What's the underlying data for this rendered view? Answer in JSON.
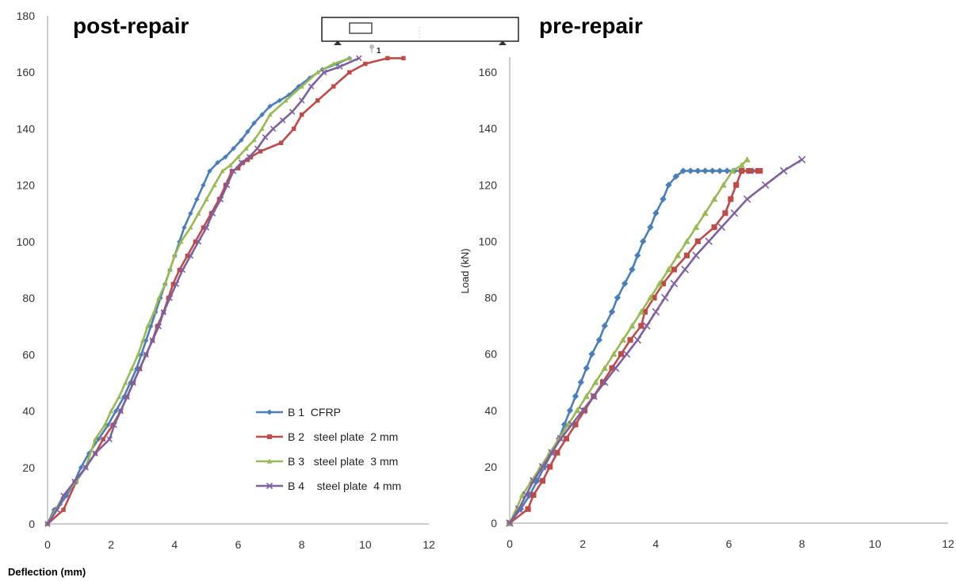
{
  "figure": {
    "xlabel": "Deflection (mm)"
  },
  "chart_data": [
    {
      "type": "line",
      "title": "post-repair",
      "xlabel": "Deflection (mm)",
      "ylabel": "",
      "xlim": [
        0,
        12
      ],
      "ylim": [
        0,
        180
      ],
      "xticks": [
        0,
        2,
        4,
        6,
        8,
        10,
        12
      ],
      "yticks": [
        0,
        20,
        40,
        60,
        80,
        100,
        120,
        140,
        160,
        180
      ],
      "legend_position": "bottom-right",
      "series": [
        {
          "name": "B 1  CFRP",
          "color": "#4a7ebb",
          "marker": "diamond",
          "x": [
            0,
            0.2,
            0.4,
            0.6,
            0.85,
            1.05,
            1.3,
            1.6,
            1.9,
            2.15,
            2.4,
            2.6,
            2.8,
            2.95,
            3.1,
            3.25,
            3.4,
            3.55,
            3.7,
            3.85,
            4.0,
            4.15,
            4.3,
            4.5,
            4.7,
            4.9,
            5.1,
            5.35,
            5.6,
            5.85,
            6.1,
            6.3,
            6.5,
            6.75,
            7.0,
            7.3,
            7.6,
            7.9,
            8.25,
            8.65,
            9.1,
            9.5
          ],
          "y": [
            0,
            5,
            7,
            10,
            15,
            20,
            25,
            30,
            35,
            40,
            45,
            50,
            55,
            60,
            65,
            70,
            75,
            80,
            85,
            90,
            95,
            100,
            105,
            110,
            115,
            120,
            125,
            128,
            130,
            133,
            136,
            139,
            142,
            145,
            148,
            150,
            152,
            155,
            158,
            161,
            163,
            165
          ]
        },
        {
          "name": "B 2   steel plate  2 mm",
          "color": "#be4b48",
          "marker": "square",
          "x": [
            0,
            0.5,
            0.9,
            1.2,
            1.5,
            1.75,
            2.05,
            2.3,
            2.5,
            2.7,
            2.9,
            3.1,
            3.3,
            3.45,
            3.65,
            3.8,
            3.95,
            4.15,
            4.4,
            4.65,
            4.9,
            5.15,
            5.4,
            5.6,
            5.8,
            6.0,
            6.15,
            6.3,
            6.4,
            6.7,
            7.35,
            7.75,
            8.0,
            8.5,
            9.0,
            9.5,
            10.0,
            10.7,
            11.2
          ],
          "y": [
            0,
            5,
            15,
            20,
            25,
            30,
            35,
            40,
            45,
            50,
            55,
            60,
            65,
            70,
            75,
            80,
            85,
            90,
            95,
            100,
            105,
            110,
            115,
            120,
            125,
            126,
            128,
            129,
            130,
            132,
            135,
            140,
            145,
            150,
            155,
            160,
            163,
            165,
            165
          ]
        },
        {
          "name": "B 3   steel plate  3 mm",
          "color": "#98b954",
          "marker": "triangle",
          "x": [
            0,
            0.5,
            0.9,
            1.2,
            1.5,
            1.8,
            2.0,
            2.25,
            2.45,
            2.65,
            2.85,
            3.0,
            3.15,
            3.35,
            3.5,
            3.7,
            3.85,
            4.0,
            4.2,
            4.5,
            4.75,
            5.0,
            5.25,
            5.5,
            5.75,
            6.0,
            6.25,
            6.5,
            6.75,
            7.0,
            7.5,
            8.0,
            8.5,
            9.0,
            9.5
          ],
          "y": [
            0,
            10,
            15,
            20,
            30,
            35,
            40,
            45,
            50,
            55,
            60,
            65,
            70,
            75,
            80,
            85,
            90,
            95,
            100,
            105,
            110,
            115,
            120,
            125,
            127,
            130,
            133,
            136,
            140,
            145,
            150,
            155,
            160,
            163,
            165
          ]
        },
        {
          "name": "B 4    steel plate  4 mm",
          "color": "#7d60a0",
          "marker": "x",
          "x": [
            0,
            0.3,
            0.5,
            0.85,
            1.2,
            1.5,
            1.95,
            2.1,
            2.3,
            2.5,
            2.7,
            2.9,
            3.1,
            3.3,
            3.5,
            3.65,
            3.85,
            4.05,
            4.25,
            4.5,
            4.75,
            5.0,
            5.2,
            5.45,
            5.65,
            5.85,
            6.1,
            6.35,
            6.6,
            6.85,
            7.1,
            7.4,
            7.7,
            8.0,
            8.3,
            8.7,
            9.2,
            9.8
          ],
          "y": [
            0,
            5,
            10,
            15,
            20,
            25,
            30,
            35,
            40,
            45,
            50,
            55,
            60,
            65,
            70,
            75,
            80,
            85,
            90,
            95,
            100,
            105,
            110,
            115,
            120,
            125,
            128,
            130,
            133,
            137,
            140,
            143,
            146,
            150,
            155,
            160,
            162,
            165
          ]
        }
      ]
    },
    {
      "type": "line",
      "title": "pre-repair",
      "xlabel": "Deflection (mm)",
      "ylabel": "Load (kN)",
      "xlim": [
        0,
        12
      ],
      "ylim": [
        0,
        180
      ],
      "xticks": [
        0,
        2,
        4,
        6,
        8,
        10,
        12
      ],
      "yticks": [
        0,
        20,
        40,
        60,
        80,
        100,
        120,
        140,
        160
      ],
      "series": [
        {
          "name": "B 1  CFRP",
          "color": "#4a7ebb",
          "marker": "diamond",
          "x": [
            0,
            0.3,
            0.55,
            0.75,
            0.95,
            1.15,
            1.35,
            1.5,
            1.65,
            1.8,
            1.95,
            2.1,
            2.25,
            2.45,
            2.6,
            2.8,
            2.95,
            3.15,
            3.35,
            3.5,
            3.65,
            3.85,
            4.0,
            4.2,
            4.35,
            4.55,
            4.75,
            4.95,
            5.15,
            5.35,
            5.55,
            5.75,
            5.95,
            6.15,
            6.35,
            6.55,
            6.65
          ],
          "y": [
            0,
            5,
            10,
            15,
            20,
            25,
            30,
            35,
            40,
            45,
            50,
            55,
            60,
            65,
            70,
            75,
            80,
            85,
            90,
            95,
            100,
            105,
            110,
            115,
            120,
            123,
            125,
            125,
            125,
            125,
            125,
            125,
            125,
            125,
            125,
            125,
            125
          ]
        },
        {
          "name": "B 2   steel plate  2 mm",
          "color": "#be4b48",
          "marker": "square",
          "x": [
            0,
            0.5,
            0.65,
            0.9,
            1.1,
            1.3,
            1.55,
            1.8,
            2.05,
            2.3,
            2.55,
            2.8,
            3.05,
            3.3,
            3.6,
            3.7,
            3.95,
            4.2,
            4.5,
            4.85,
            5.15,
            5.6,
            5.9,
            6.05,
            6.2,
            6.35,
            6.55,
            6.8,
            6.85
          ],
          "y": [
            0,
            5,
            10,
            15,
            20,
            25,
            30,
            35,
            40,
            45,
            50,
            55,
            60,
            65,
            70,
            75,
            80,
            85,
            90,
            95,
            100,
            105,
            110,
            115,
            120,
            125,
            125,
            125,
            125
          ]
        },
        {
          "name": "B 3   steel plate  3 mm",
          "color": "#98b954",
          "marker": "triangle",
          "x": [
            0,
            0.35,
            0.6,
            0.85,
            1.1,
            1.35,
            1.6,
            1.85,
            2.1,
            2.35,
            2.6,
            2.85,
            3.1,
            3.35,
            3.6,
            3.85,
            4.1,
            4.35,
            4.6,
            4.85,
            5.1,
            5.35,
            5.6,
            5.85,
            6.1,
            6.35,
            6.5
          ],
          "y": [
            0,
            10,
            15,
            20,
            25,
            30,
            35,
            40,
            45,
            50,
            55,
            60,
            65,
            70,
            75,
            80,
            85,
            90,
            95,
            100,
            105,
            110,
            115,
            120,
            125,
            127,
            129
          ]
        },
        {
          "name": "B 4    steel plate  4 mm",
          "color": "#7d60a0",
          "marker": "x",
          "x": [
            0,
            0.25,
            0.45,
            0.65,
            0.9,
            1.15,
            1.4,
            1.7,
            2.0,
            2.3,
            2.6,
            2.9,
            3.2,
            3.5,
            3.75,
            4.0,
            4.25,
            4.5,
            4.8,
            5.1,
            5.45,
            5.8,
            6.15,
            6.5,
            7.0,
            7.5,
            8.0
          ],
          "y": [
            0,
            5,
            10,
            15,
            20,
            25,
            30,
            35,
            40,
            45,
            50,
            55,
            60,
            65,
            70,
            75,
            80,
            85,
            90,
            95,
            100,
            105,
            110,
            115,
            120,
            125,
            129
          ]
        }
      ]
    }
  ],
  "inset": {
    "label": "1",
    "description_icon": "beam-load-diagram-icon"
  }
}
